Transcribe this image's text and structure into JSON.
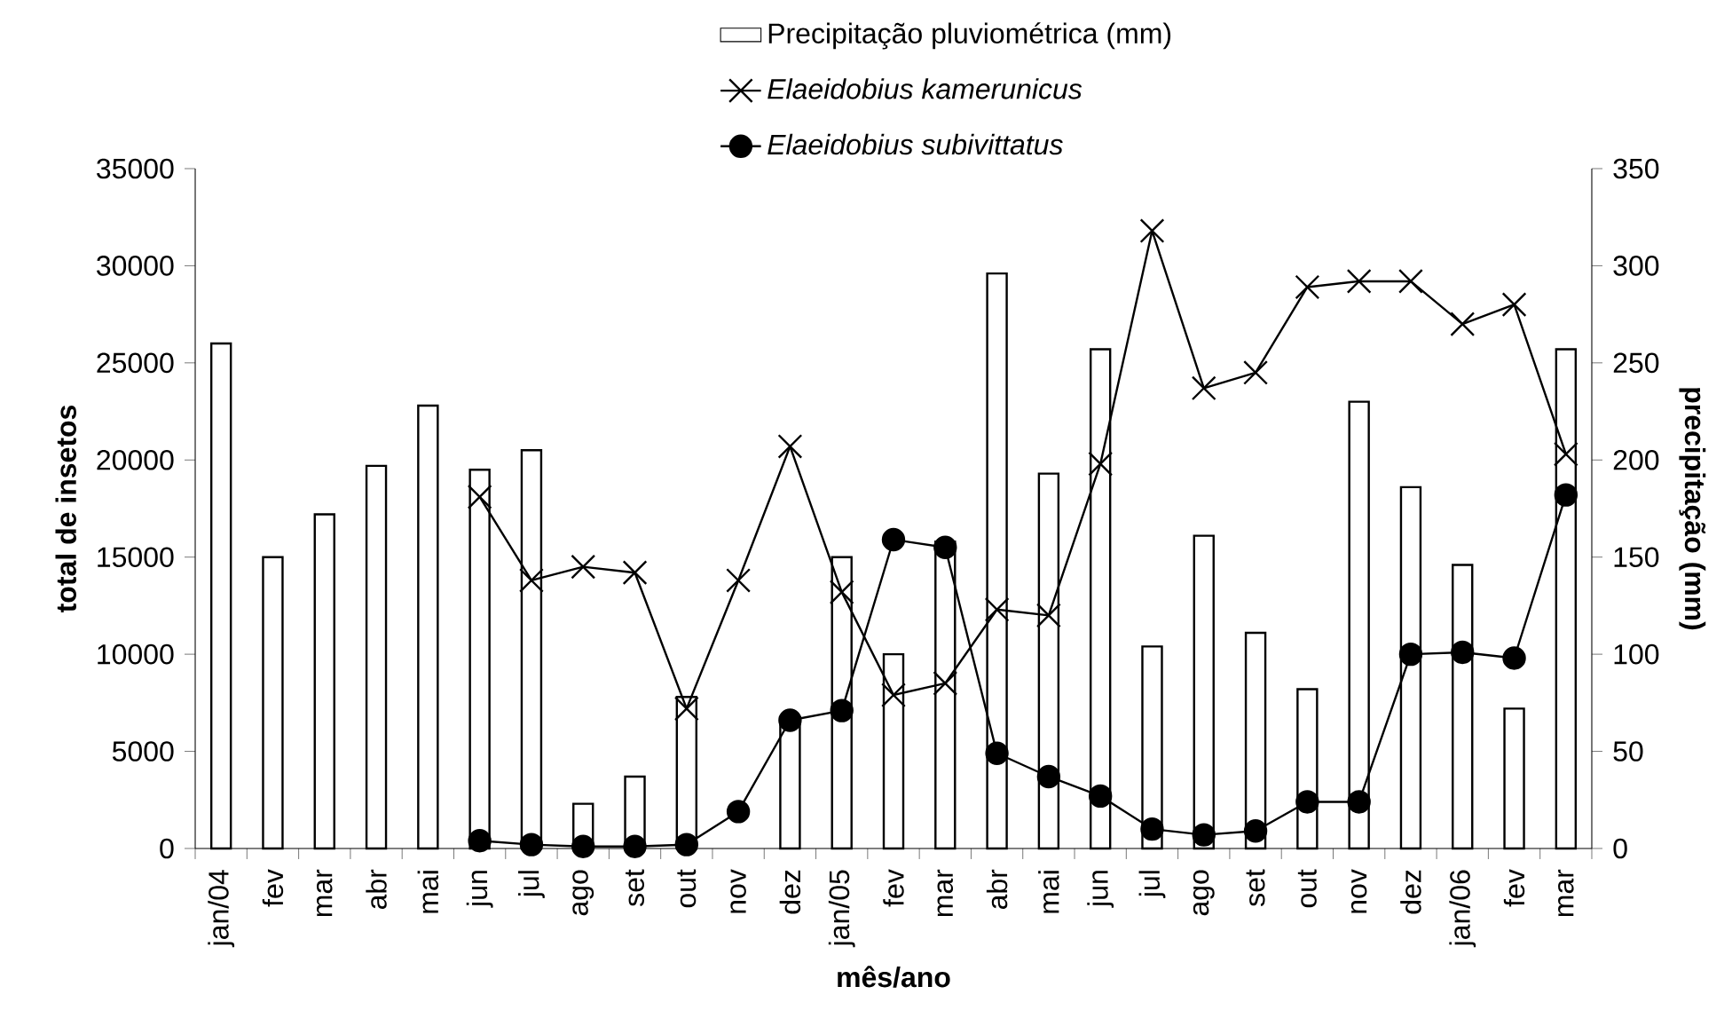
{
  "chart_data": {
    "type": "bar",
    "xlabel": "mês/ano",
    "ylabel": "total de insetos",
    "y2label": "precipitação (mm)",
    "legend": "top",
    "grid": false,
    "categories": [
      "jan/04",
      "fev",
      "mar",
      "abr",
      "mai",
      "jun",
      "jul",
      "ago",
      "set",
      "out",
      "nov",
      "dez",
      "jan/05",
      "fev",
      "mar",
      "abr",
      "mai",
      "jun",
      "jul",
      "ago",
      "set",
      "out",
      "nov",
      "dez",
      "jan/06",
      "fev",
      "mar"
    ],
    "series": [
      {
        "name": "Precipitação pluviométrica (mm)",
        "axis": "y2",
        "color": "#ffffff",
        "values": [
          260,
          150,
          172,
          197,
          228,
          195,
          205,
          23,
          37,
          78,
          null,
          66,
          150,
          100,
          158,
          296,
          193,
          257,
          104,
          161,
          111,
          82,
          230,
          186,
          146,
          72,
          257
        ]
      },
      {
        "name": "*Elaeidobius kamerunicus*",
        "type": "line",
        "marker": "cross",
        "color": "#000000",
        "values": [
          null,
          null,
          null,
          null,
          null,
          18100,
          13800,
          14500,
          14200,
          7200,
          13800,
          20700,
          13200,
          7900,
          8500,
          12300,
          12000,
          19800,
          31800,
          23700,
          24500,
          28900,
          29200,
          29200,
          27000,
          28000,
          20300
        ]
      },
      {
        "name": "*Elaeidobius subivittatus*",
        "type": "line",
        "marker": "circle",
        "color": "#000000",
        "values": [
          null,
          null,
          null,
          null,
          null,
          400,
          200,
          100,
          100,
          200,
          1900,
          6600,
          7100,
          15900,
          15500,
          4900,
          3700,
          2700,
          1000,
          700,
          900,
          2400,
          2400,
          10000,
          10100,
          9800,
          18200
        ]
      }
    ],
    "ylim": [
      0,
      35000
    ],
    "yticks": [
      0,
      5000,
      10000,
      15000,
      20000,
      25000,
      30000,
      35000
    ],
    "y2lim": [
      0,
      350
    ],
    "y2ticks": [
      0,
      50,
      100,
      150,
      200,
      250,
      300,
      350
    ]
  }
}
